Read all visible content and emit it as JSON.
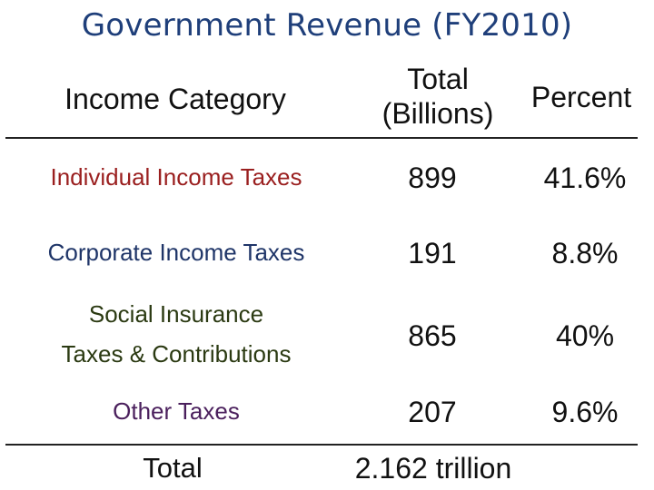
{
  "title": "Government Revenue (FY2010)",
  "headers": {
    "category": "Income Category",
    "total_line1": "Total",
    "total_line2": "(Billions)",
    "percent": "Percent"
  },
  "rows": [
    {
      "category_lines": [
        "Individual Income Taxes"
      ],
      "total": "899",
      "percent": "41.6%",
      "color": "#9a1f1f"
    },
    {
      "category_lines": [
        "Corporate Income Taxes"
      ],
      "total": "191",
      "percent": "8.8%",
      "color": "#1f3568"
    },
    {
      "category_lines": [
        "Social Insurance",
        "Taxes & Contributions"
      ],
      "total": "865",
      "percent": "40%",
      "color": "#2b3a12"
    },
    {
      "category_lines": [
        "Other Taxes"
      ],
      "total": "207",
      "percent": "9.6%",
      "color": "#4a1f5c"
    }
  ],
  "footer": {
    "label": "Total",
    "value": "2.162 trillion"
  }
}
